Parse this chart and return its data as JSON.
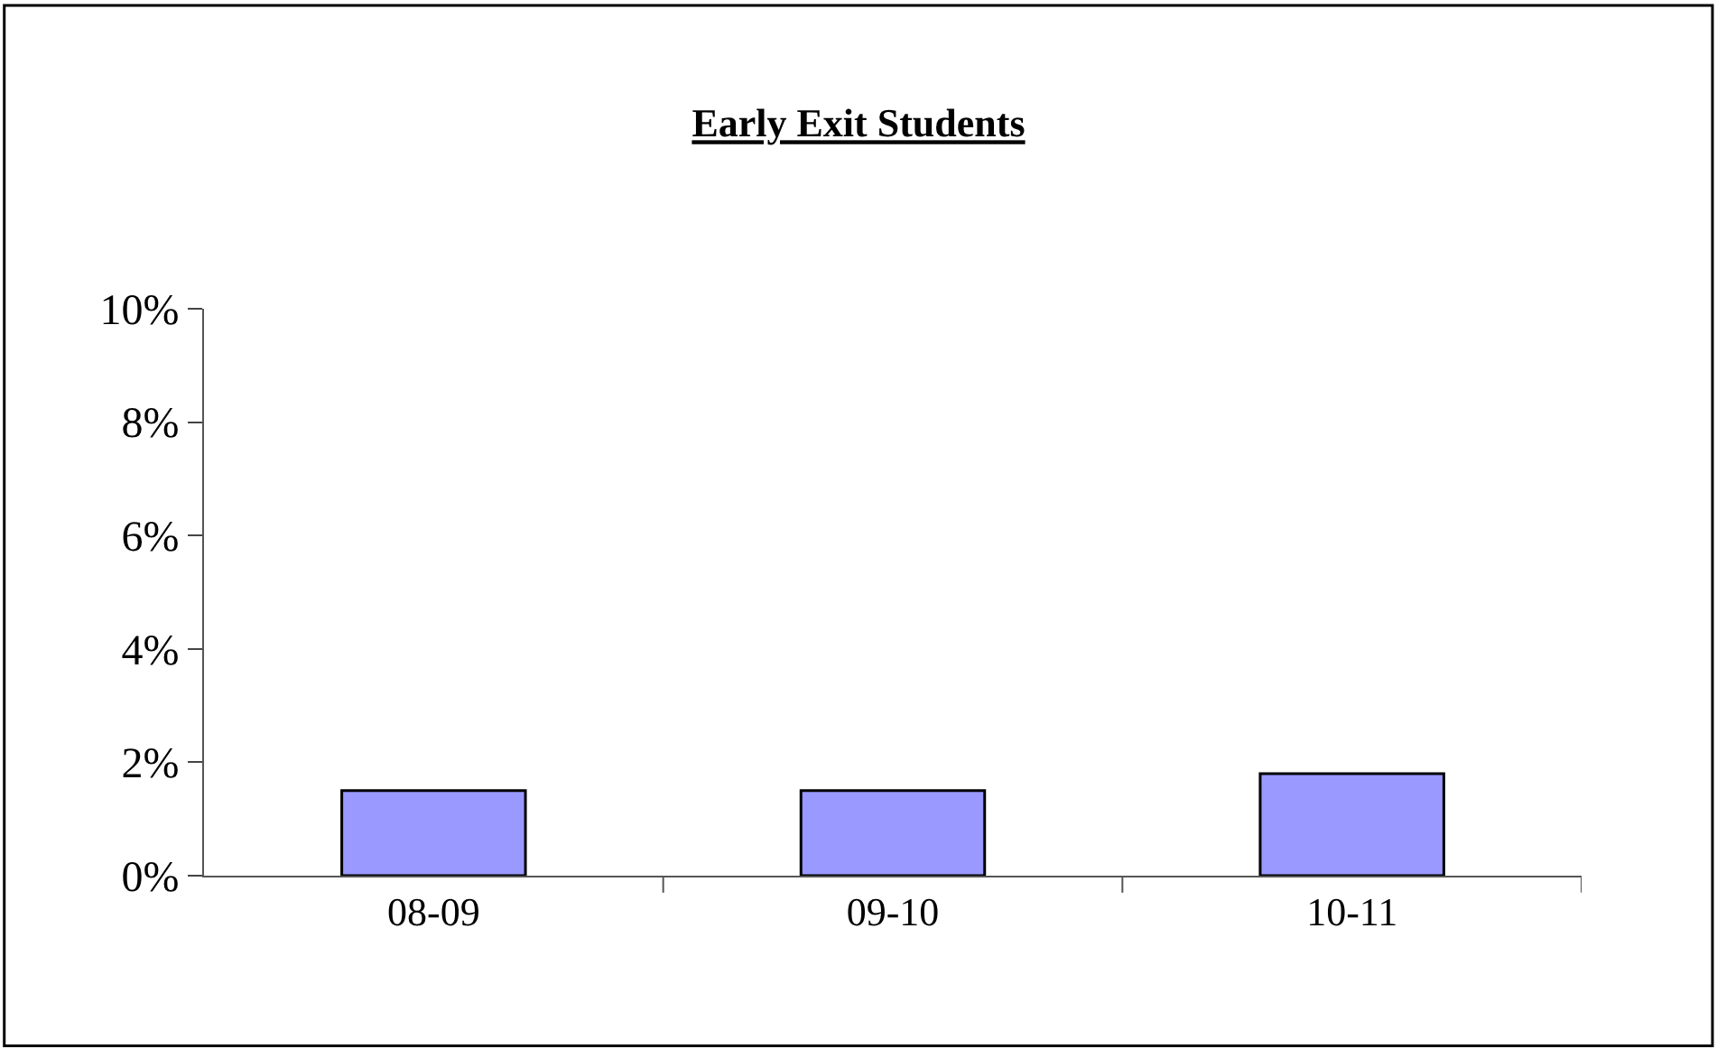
{
  "chart_data": {
    "type": "bar",
    "title": "Early Exit Students",
    "categories": [
      "08-09",
      "09-10",
      "10-11"
    ],
    "values": [
      1.5,
      1.5,
      1.8
    ],
    "color": "#9999ff",
    "ylim": [
      0,
      10
    ],
    "yticks": [
      {
        "value": 0,
        "label": "0%"
      },
      {
        "value": 2,
        "label": "2%"
      },
      {
        "value": 4,
        "label": "4%"
      },
      {
        "value": 6,
        "label": "6%"
      },
      {
        "value": 8,
        "label": "8%"
      },
      {
        "value": 10,
        "label": "10%"
      }
    ],
    "legend": false
  }
}
